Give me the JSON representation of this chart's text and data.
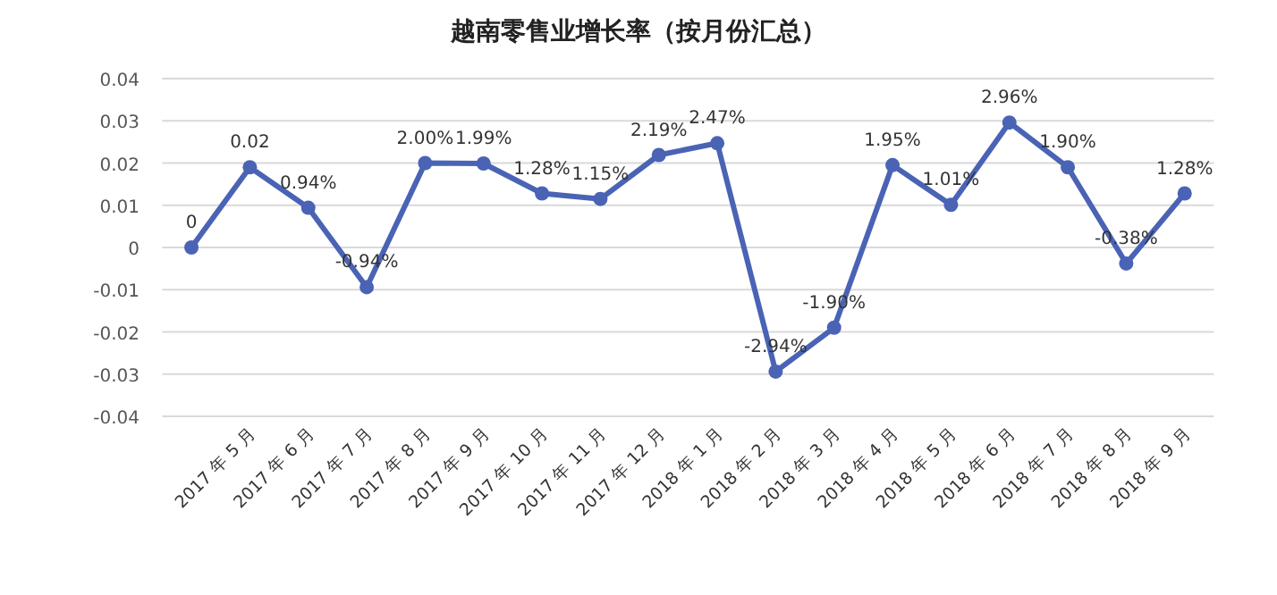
{
  "chart_data": {
    "type": "line",
    "title": "越南零售业增长率（按月份汇总）",
    "categories": [
      null,
      "2017 年 5 月",
      "2017 年 6 月",
      "2017 年 7 月",
      "2017 年 8 月",
      "2017 年 9 月",
      "2017 年 10 月",
      "2017 年 11 月",
      "2017 年 12 月",
      "2018 年 1 月",
      "2018 年 2 月",
      "2018 年 3 月",
      "2018 年 4 月",
      "2018 年 5 月",
      "2018 年 6 月",
      "2018 年 7 月",
      "2018 年 8 月",
      "2018 年 9 月"
    ],
    "series": [
      {
        "color": "#4a63b5",
        "values": [
          0,
          0.019,
          0.0094,
          -0.0094,
          0.02,
          0.0199,
          0.0128,
          0.0115,
          0.0219,
          0.0247,
          -0.0294,
          -0.019,
          0.0195,
          0.0101,
          0.0296,
          0.019,
          -0.0038,
          0.0128
        ],
        "value_labels": [
          "0",
          "0.02",
          "0.94%",
          "-0.94%",
          "2.00%",
          "1.99%",
          "1.28%",
          "1.15%",
          "2.19%",
          "2.47%",
          "-2.94%",
          "-1.90%",
          "1.95%",
          "1.01%",
          "2.96%",
          "1.90%",
          "-0.38%",
          "1.28%"
        ]
      }
    ],
    "ylim": [
      -0.04,
      0.04
    ],
    "yticks": [
      {
        "value": -0.04,
        "label": "-0.04"
      },
      {
        "value": -0.03,
        "label": "-0.03"
      },
      {
        "value": -0.02,
        "label": "-0.02"
      },
      {
        "value": -0.01,
        "label": "-0.01"
      },
      0,
      {
        "value": 0.01,
        "label": "0.01"
      },
      {
        "value": 0.02,
        "label": "0.02"
      },
      {
        "value": 0.03,
        "label": "0.03"
      },
      {
        "value": 0.04,
        "label": "0.04"
      }
    ],
    "grid": "y",
    "marker": "circle",
    "line_style": "solid"
  }
}
